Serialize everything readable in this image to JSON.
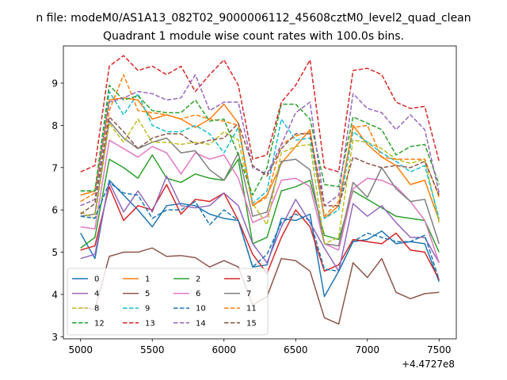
{
  "figure": {
    "suptitle": "n file: modeM0/AS1A13_082T02_9000006112_45608cztM0_level2_quad_clean",
    "offset_label": "+4.4727e8"
  },
  "chart_data": {
    "type": "line",
    "title": "Quadrant 1 module wise count rates with 100.0s bins.",
    "xlabel": "",
    "ylabel": "",
    "xlim": [
      4880,
      7620
    ],
    "ylim": [
      2.95,
      9.88
    ],
    "x_offset": 447270000,
    "xticks": [
      5000,
      5500,
      6000,
      6500,
      7000,
      7500
    ],
    "xtick_labels": [
      "5000",
      "5500",
      "6000",
      "6500",
      "7000",
      "7500"
    ],
    "yticks": [
      3,
      4,
      5,
      6,
      7,
      8,
      9
    ],
    "ytick_labels": [
      "3",
      "4",
      "5",
      "6",
      "7",
      "8",
      "9"
    ],
    "grid": false,
    "legend_position": "lower-left",
    "legend_columns": 4,
    "x": [
      5000,
      5100,
      5200,
      5300,
      5400,
      5500,
      5600,
      5700,
      5800,
      5900,
      6000,
      6100,
      6200,
      6300,
      6400,
      6500,
      6600,
      6700,
      6800,
      6900,
      7000,
      7100,
      7200,
      7300,
      7400,
      7500
    ],
    "series": [
      {
        "name": "0",
        "color": "#1f77b4",
        "dash": "solid",
        "values": [
          5.45,
          4.85,
          6.7,
          6.35,
          6.0,
          5.6,
          6.1,
          6.15,
          6.1,
          5.9,
          5.8,
          5.75,
          4.65,
          4.7,
          5.8,
          5.75,
          5.9,
          3.95,
          4.55,
          5.25,
          5.3,
          5.5,
          5.2,
          5.25,
          5.2,
          4.3
        ]
      },
      {
        "name": "1",
        "color": "#ff7f0e",
        "dash": "solid",
        "values": [
          6.35,
          6.45,
          8.6,
          8.65,
          8.6,
          8.15,
          8.25,
          8.15,
          7.95,
          8.15,
          8.5,
          8.05,
          6.1,
          6.35,
          7.1,
          7.5,
          7.9,
          5.8,
          6.1,
          8.0,
          7.55,
          7.25,
          7.05,
          6.6,
          6.7,
          5.75
        ]
      },
      {
        "name": "2",
        "color": "#2ca02c",
        "dash": "solid",
        "values": [
          5.1,
          5.35,
          7.2,
          7.0,
          6.75,
          7.3,
          6.75,
          6.65,
          6.85,
          6.75,
          6.7,
          7.2,
          5.2,
          5.35,
          6.45,
          6.55,
          6.7,
          5.4,
          5.3,
          6.45,
          6.25,
          6.05,
          5.85,
          5.8,
          5.75,
          5.0
        ]
      },
      {
        "name": "3",
        "color": "#d62728",
        "dash": "solid",
        "values": [
          5.05,
          5.15,
          6.55,
          5.75,
          6.1,
          6.0,
          6.6,
          5.9,
          6.25,
          6.2,
          6.4,
          5.75,
          4.95,
          4.5,
          5.35,
          6.0,
          5.6,
          4.55,
          4.7,
          5.3,
          5.25,
          5.2,
          5.45,
          5.05,
          5.0,
          4.35
        ]
      },
      {
        "name": "4",
        "color": "#9467bd",
        "dash": "solid",
        "values": [
          4.85,
          4.95,
          6.65,
          5.95,
          6.45,
          5.95,
          6.8,
          6.1,
          6.05,
          6.1,
          6.4,
          6.1,
          5.2,
          4.75,
          5.6,
          6.25,
          5.7,
          5.1,
          4.55,
          6.15,
          5.85,
          6.1,
          5.7,
          5.35,
          5.35,
          4.75
        ]
      },
      {
        "name": "5",
        "color": "#8c564b",
        "dash": "solid",
        "values": [
          3.7,
          3.65,
          4.9,
          5.0,
          5.0,
          5.1,
          4.9,
          4.92,
          4.87,
          4.65,
          4.8,
          4.65,
          3.75,
          3.95,
          4.85,
          4.8,
          4.55,
          3.45,
          3.3,
          4.75,
          4.4,
          4.85,
          4.05,
          3.9,
          4.02,
          4.05
        ]
      },
      {
        "name": "6",
        "color": "#e377c2",
        "dash": "solid",
        "values": [
          5.6,
          5.55,
          7.65,
          7.45,
          7.25,
          7.5,
          7.35,
          6.85,
          7.35,
          7.2,
          7.3,
          6.75,
          5.7,
          5.85,
          6.7,
          6.75,
          6.55,
          5.2,
          5.05,
          6.5,
          6.75,
          6.7,
          6.55,
          6.2,
          5.75,
          4.75
        ]
      },
      {
        "name": "7",
        "color": "#7f7f7f",
        "dash": "solid",
        "values": [
          5.85,
          5.9,
          8.1,
          7.7,
          7.45,
          7.6,
          7.7,
          7.35,
          7.4,
          6.95,
          6.7,
          7.35,
          5.85,
          5.95,
          7.15,
          7.2,
          6.95,
          5.2,
          5.15,
          6.65,
          6.3,
          7.0,
          6.5,
          6.2,
          6.25,
          5.2
        ]
      },
      {
        "name": "8",
        "color": "#bcbd22",
        "dash": "dashed",
        "values": [
          5.95,
          5.8,
          8.05,
          7.6,
          8.15,
          7.6,
          7.6,
          7.55,
          7.6,
          7.55,
          7.85,
          7.65,
          6.15,
          5.65,
          7.35,
          7.5,
          7.55,
          5.2,
          5.35,
          7.65,
          7.6,
          7.45,
          7.2,
          7.1,
          7.2,
          5.7
        ]
      },
      {
        "name": "9",
        "color": "#17becf",
        "dash": "dashed",
        "values": [
          6.45,
          6.45,
          8.8,
          8.25,
          8.75,
          8.0,
          7.85,
          7.85,
          8.0,
          7.8,
          7.35,
          7.95,
          6.15,
          6.45,
          8.15,
          7.65,
          7.7,
          5.8,
          6.0,
          7.85,
          7.6,
          7.35,
          7.15,
          6.9,
          7.05,
          5.8
        ]
      },
      {
        "name": "10",
        "color": "#1f77b4",
        "dash": "dashed",
        "values": [
          5.85,
          5.8,
          6.65,
          6.4,
          6.35,
          5.8,
          6.0,
          6.0,
          6.2,
          5.65,
          6.0,
          5.75,
          4.65,
          4.95,
          5.7,
          5.9,
          5.75,
          4.6,
          4.55,
          5.25,
          5.45,
          5.35,
          5.25,
          5.25,
          5.4,
          4.35
        ]
      },
      {
        "name": "11",
        "color": "#ff7f0e",
        "dash": "dashed",
        "values": [
          6.2,
          6.4,
          8.35,
          9.2,
          8.35,
          8.3,
          8.25,
          8.15,
          8.25,
          8.15,
          8.1,
          8.0,
          6.1,
          6.3,
          7.55,
          7.75,
          7.85,
          5.85,
          6.2,
          7.95,
          8.0,
          7.25,
          7.2,
          7.2,
          7.2,
          6.3
        ]
      },
      {
        "name": "12",
        "color": "#2ca02c",
        "dash": "dashed",
        "values": [
          6.45,
          6.45,
          8.95,
          8.6,
          8.7,
          8.35,
          8.3,
          8.3,
          8.6,
          8.1,
          8.15,
          7.3,
          6.35,
          7.0,
          8.5,
          8.5,
          8.15,
          6.6,
          6.55,
          8.2,
          8.05,
          7.9,
          7.3,
          7.5,
          7.55,
          6.6
        ]
      },
      {
        "name": "13",
        "color": "#d62728",
        "dash": "dashed",
        "values": [
          6.9,
          7.05,
          9.4,
          9.65,
          9.3,
          9.4,
          9.2,
          9.4,
          8.8,
          9.2,
          9.55,
          8.95,
          7.2,
          7.3,
          8.55,
          8.95,
          9.55,
          7.0,
          6.9,
          9.3,
          9.35,
          9.2,
          8.55,
          8.4,
          8.45,
          7.15
        ]
      },
      {
        "name": "14",
        "color": "#9467bd",
        "dash": "dashed",
        "values": [
          6.1,
          6.25,
          8.55,
          8.65,
          8.8,
          8.75,
          8.6,
          8.65,
          9.2,
          8.35,
          8.55,
          8.55,
          7.0,
          6.85,
          7.55,
          8.3,
          8.55,
          6.1,
          6.35,
          8.75,
          8.4,
          8.3,
          7.9,
          8.25,
          7.9,
          6.4
        ]
      },
      {
        "name": "15",
        "color": "#8c564b",
        "dash": "dashed",
        "values": [
          5.9,
          6.15,
          8.2,
          7.85,
          7.45,
          7.7,
          7.8,
          7.8,
          7.55,
          7.65,
          7.7,
          8.05,
          7.05,
          6.8,
          7.45,
          7.8,
          7.8,
          6.1,
          6.1,
          7.25,
          7.1,
          7.0,
          7.05,
          7.0,
          7.15,
          6.35
        ]
      }
    ]
  }
}
